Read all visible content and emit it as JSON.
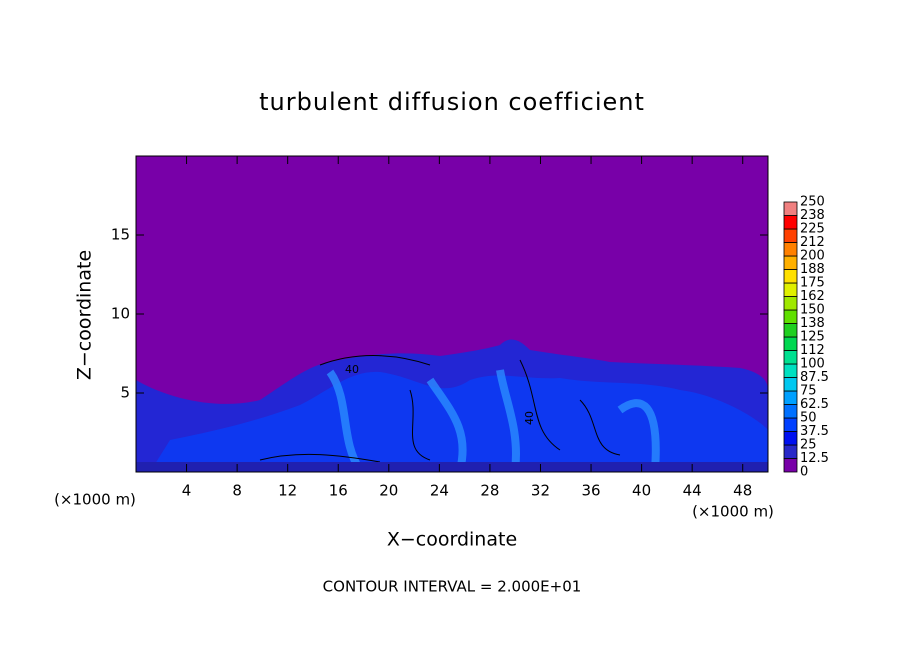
{
  "chart_data": {
    "type": "contour",
    "title": "turbulent diffusion coefficient",
    "x_label": "X−coordinate",
    "y_label": "Z−coordinate",
    "x_unit": "(×1000 m)",
    "annotation": "CONTOUR INTERVAL = 2.000E+01",
    "xlim": [
      0,
      50
    ],
    "xticks": [
      4,
      8,
      12,
      16,
      20,
      24,
      28,
      32,
      36,
      40,
      44,
      48
    ],
    "ylim": [
      0,
      20
    ],
    "yticks": [
      5,
      10,
      15
    ],
    "contour_labels": [
      "40",
      "40"
    ],
    "colorbar": {
      "levels": [
        0,
        12.5,
        25,
        37.5,
        50,
        62.5,
        75,
        87.5,
        100,
        112,
        125,
        138,
        150,
        162,
        175,
        188,
        200,
        212,
        225,
        238,
        250
      ],
      "colors": [
        "#7800a8",
        "#2828c8",
        "#0010f0",
        "#0040ff",
        "#0070ff",
        "#00a0ff",
        "#00c8f0",
        "#00e0c0",
        "#00e090",
        "#00d850",
        "#20d020",
        "#60e000",
        "#a0e800",
        "#e0f000",
        "#ffe000",
        "#ffb000",
        "#ff8000",
        "#ff4000",
        "#ff0000",
        "#f08080"
      ]
    }
  }
}
